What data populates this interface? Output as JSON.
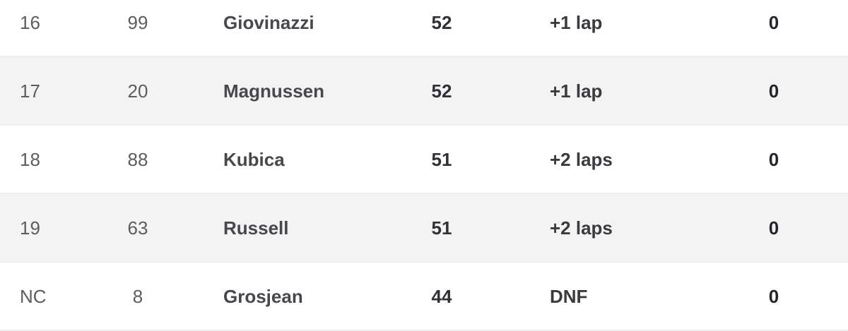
{
  "colors": {
    "row_bg": "#ffffff",
    "row_alt": "#f4f3f4",
    "border": "#f0eff0",
    "muted_text": "#5c5d5f",
    "name_text": "#47484c",
    "laps_text": "#2f3135",
    "time_text": "#3a3b3f",
    "pts_text": "#232529"
  },
  "table": {
    "rows": [
      {
        "pos": "16",
        "no": "99",
        "driver": "Giovinazzi",
        "laps": "52",
        "time": "+1 lap",
        "pts": "0"
      },
      {
        "pos": "17",
        "no": "20",
        "driver": "Magnussen",
        "laps": "52",
        "time": "+1 lap",
        "pts": "0"
      },
      {
        "pos": "18",
        "no": "88",
        "driver": "Kubica",
        "laps": "51",
        "time": "+2 laps",
        "pts": "0"
      },
      {
        "pos": "19",
        "no": "63",
        "driver": "Russell",
        "laps": "51",
        "time": "+2 laps",
        "pts": "0"
      },
      {
        "pos": "NC",
        "no": "8",
        "driver": "Grosjean",
        "laps": "44",
        "time": "DNF",
        "pts": "0"
      }
    ]
  }
}
